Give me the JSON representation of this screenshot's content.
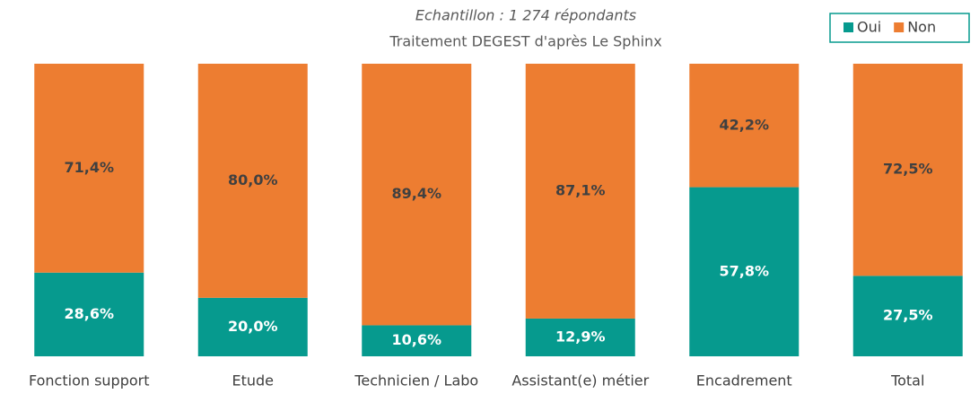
{
  "chart_data": {
    "type": "stacked_bar",
    "subtitle": [
      "Echantillon : 1 274 répondants",
      "Traitement DEGEST d'après Le Sphinx"
    ],
    "categories": [
      "Fonction support",
      "Etude",
      "Technicien / Labo",
      "Assistant(e) métier",
      "Encadrement",
      "Total"
    ],
    "series": [
      {
        "name": "Oui",
        "color": "#069a8e",
        "values": [
          28.6,
          20.0,
          10.6,
          12.9,
          57.8,
          27.5
        ],
        "value_labels": [
          "28,6%",
          "20,0%",
          "10,6%",
          "12,9%",
          "57,8%",
          "27,5%"
        ]
      },
      {
        "name": "Non",
        "color": "#ed7d31",
        "values": [
          71.4,
          80.0,
          89.4,
          87.1,
          42.2,
          72.5
        ],
        "value_labels": [
          "71,4%",
          "80,0%",
          "89,4%",
          "87,1%",
          "42,2%",
          "72,5%"
        ]
      }
    ],
    "ylim": [
      0,
      100
    ],
    "legend": "top-right"
  }
}
